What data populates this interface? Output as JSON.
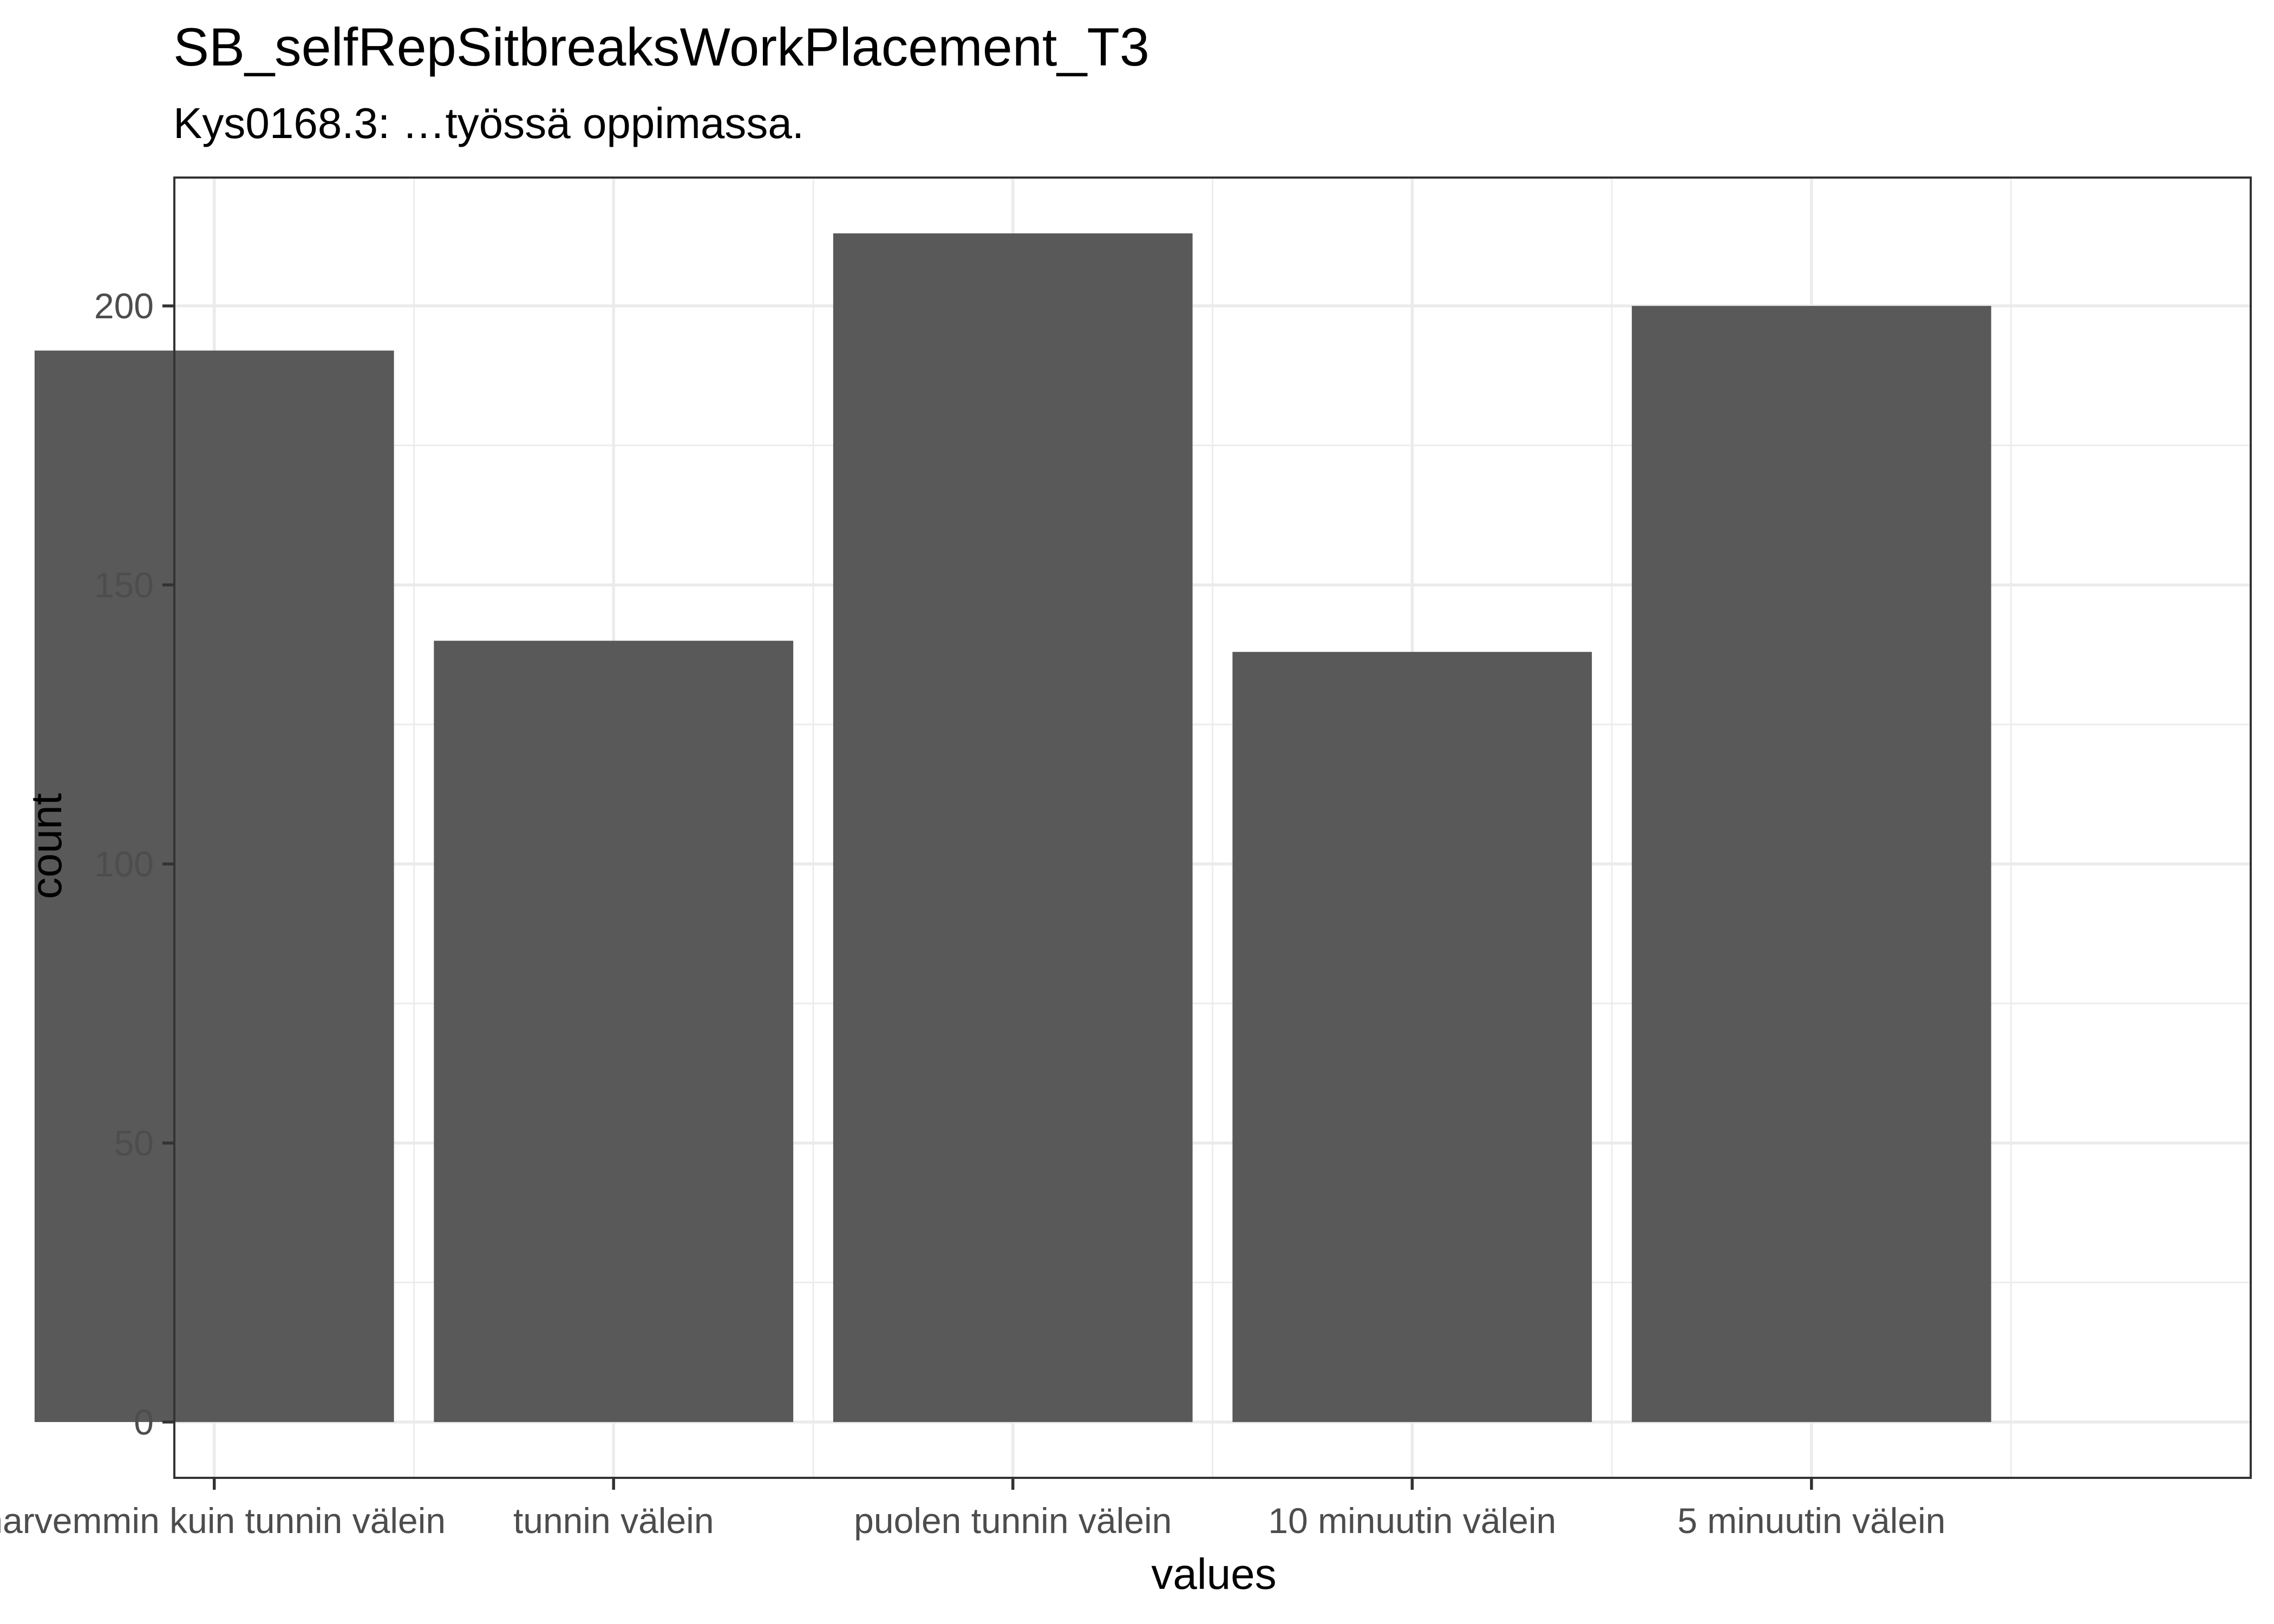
{
  "chart_data": {
    "type": "bar",
    "title": "SB_selfRepSitbreaksWorkPlacement_T3",
    "subtitle": "Kys0168.3: …työssä oppimassa.",
    "xlabel": "values",
    "ylabel": "count",
    "categories": [
      "harvemmin kuin tunnin välein",
      "tunnin välein",
      "puolen tunnin välein",
      "10 minuutin välein",
      "5 minuutin välein"
    ],
    "values": [
      192,
      140,
      213,
      138,
      200
    ],
    "y_ticks": [
      "0",
      "50",
      "100",
      "150",
      "200"
    ],
    "ylim": [
      -10,
      223
    ],
    "grid": true,
    "colors": {
      "bar": "#595959",
      "grid": "#ebebeb",
      "panel_border": "#333333"
    }
  }
}
